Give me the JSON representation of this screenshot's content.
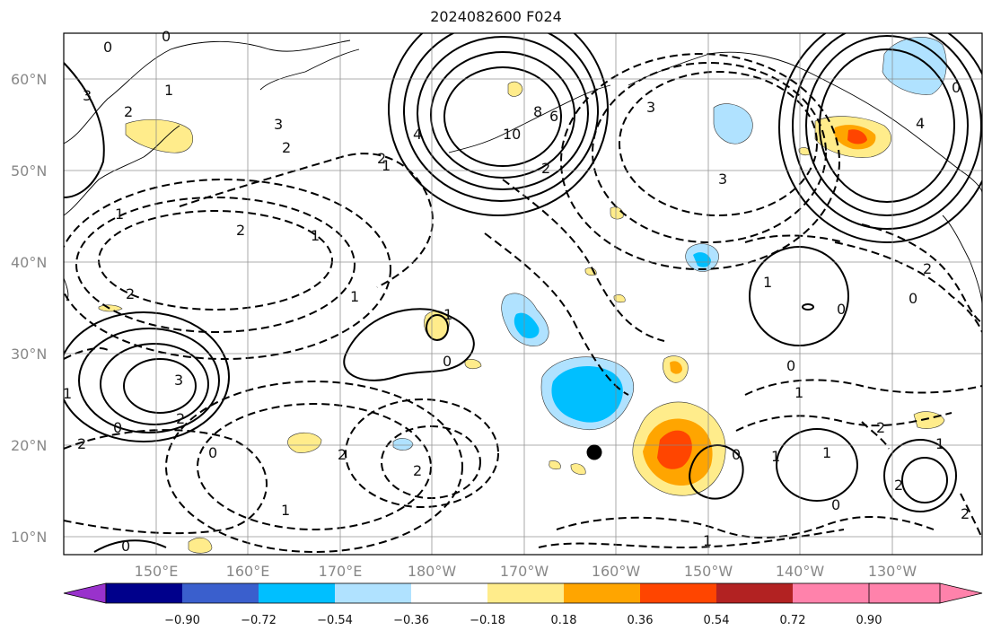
{
  "title": "2024082600 F024",
  "map": {
    "lat_labels": [
      "60°N",
      "50°N",
      "40°N",
      "30°N",
      "20°N",
      "10°N"
    ],
    "lon_labels": [
      "150°E",
      "160°E",
      "170°E",
      "180°W",
      "170°W",
      "160°W",
      "150°W",
      "140°W",
      "130°W"
    ]
  },
  "colorbar": {
    "colors": [
      "#9932cc",
      "#00008b",
      "#3a5fcd",
      "#00bfff",
      "#b0e2ff",
      "#ffffff",
      "#ffec8b",
      "#ffa500",
      "#ff4500",
      "#b22222",
      "#ff82ab"
    ],
    "labels": [
      "−0.90",
      "−0.72",
      "−0.54",
      "−0.36",
      "−0.18",
      "0.18",
      "0.36",
      "0.54",
      "0.72",
      "0.90"
    ]
  },
  "contour_labels": [
    "0",
    "3",
    "2",
    "1",
    "2",
    "3",
    "1",
    "2",
    "1",
    "0",
    "2",
    "0",
    "1",
    "3",
    "2",
    "0",
    "1",
    "2",
    "1",
    "2",
    "0",
    "1",
    "0",
    "1",
    "2",
    "0",
    "1",
    "0",
    "8",
    "10",
    "6",
    "4",
    "3",
    "2",
    "4",
    "0",
    "1",
    "2",
    "3",
    "2",
    "0",
    "1",
    "2",
    "1",
    "2",
    "0",
    "1",
    "2",
    "0",
    "1"
  ]
}
